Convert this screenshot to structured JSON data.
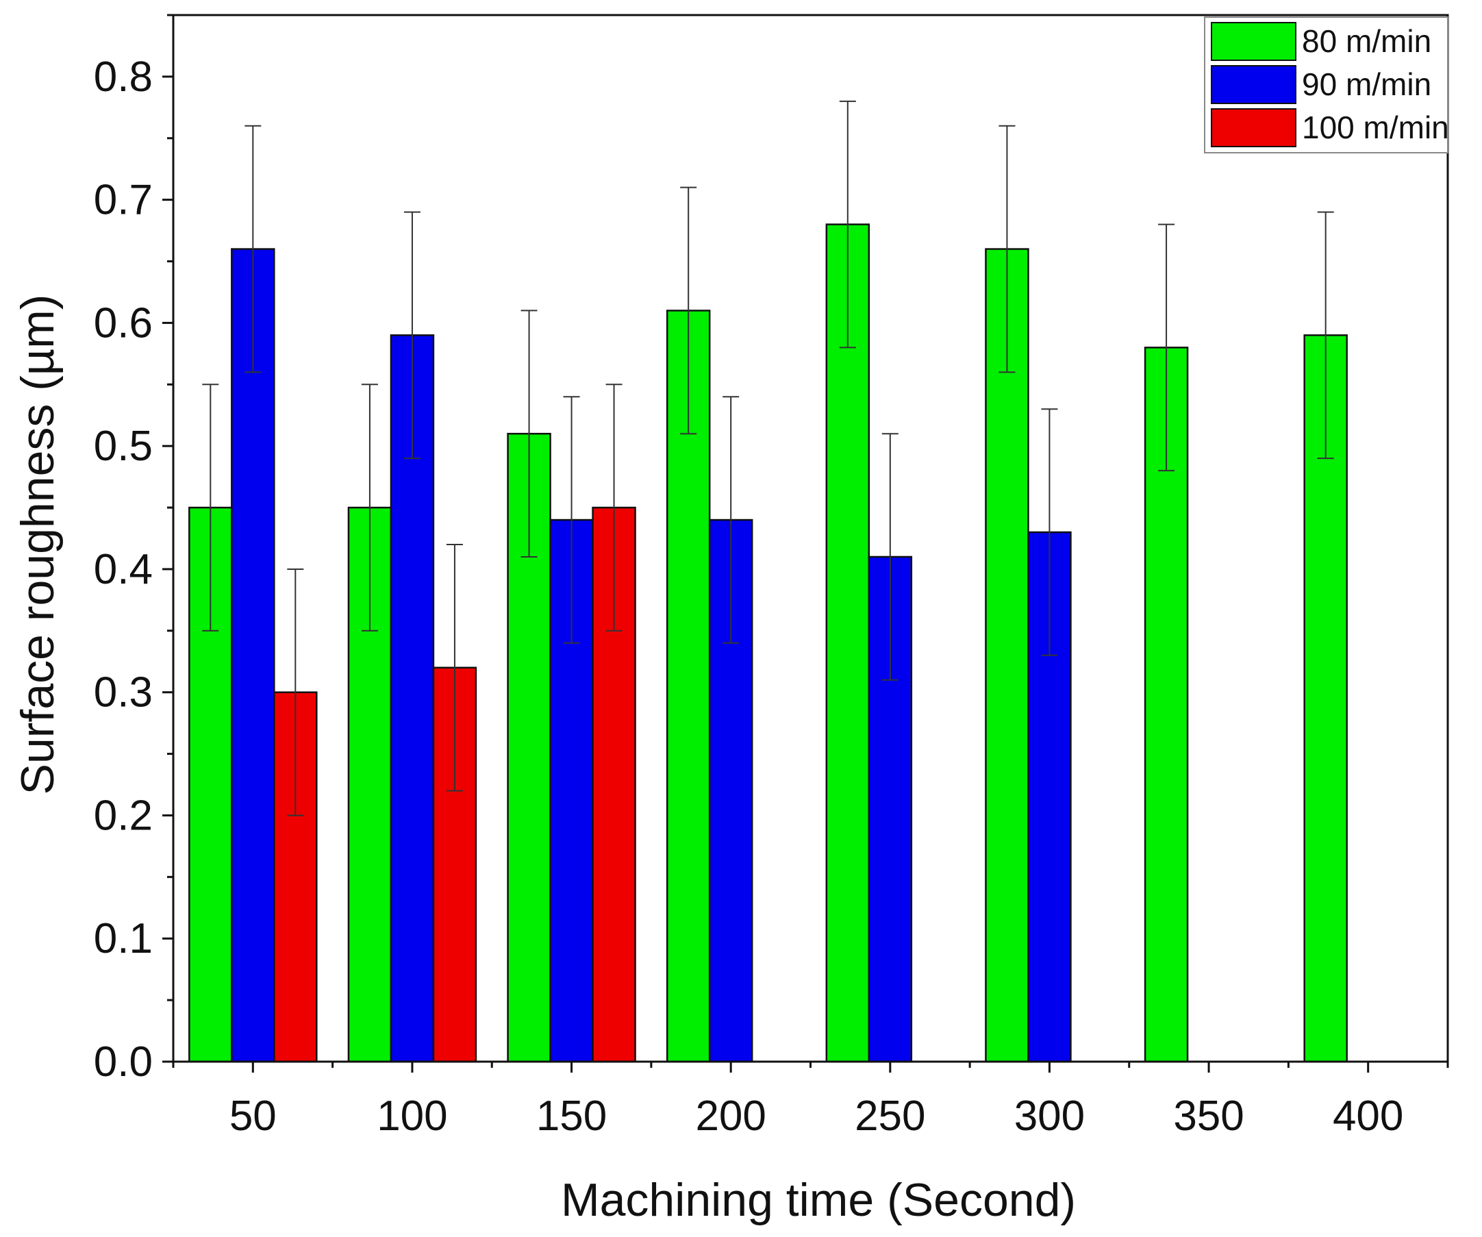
{
  "chart_data": {
    "type": "bar",
    "title": "",
    "xlabel": "Machining time (Second)",
    "ylabel": "Surface roughness (µm)",
    "categories": [
      "50",
      "100",
      "150",
      "200",
      "250",
      "300",
      "350",
      "400"
    ],
    "x": [
      50,
      100,
      150,
      200,
      250,
      300,
      350,
      400
    ],
    "xlim": [
      25,
      425
    ],
    "ylim": [
      0,
      0.85
    ],
    "yticks": [
      "0.0",
      "0.1",
      "0.2",
      "0.3",
      "0.4",
      "0.5",
      "0.6",
      "0.7",
      "0.8"
    ],
    "grid": false,
    "legend_position": "top-right",
    "series": [
      {
        "name": "80 m/min",
        "color": "#00ee00",
        "values": [
          0.45,
          0.45,
          0.51,
          0.61,
          0.68,
          0.66,
          0.58,
          0.59
        ],
        "errors": [
          0.1,
          0.1,
          0.1,
          0.1,
          0.1,
          0.1,
          0.1,
          0.1
        ]
      },
      {
        "name": "90 m/min",
        "color": "#0000ee",
        "values": [
          0.66,
          0.59,
          0.44,
          0.44,
          0.41,
          0.43,
          null,
          null
        ],
        "errors": [
          0.1,
          0.1,
          0.1,
          0.1,
          0.1,
          0.1,
          null,
          null
        ]
      },
      {
        "name": "100 m/min",
        "color": "#ee0000",
        "values": [
          0.3,
          0.32,
          0.45,
          null,
          null,
          null,
          null,
          null
        ],
        "errors": [
          0.1,
          0.1,
          0.1,
          null,
          null,
          null,
          null,
          null
        ]
      }
    ]
  }
}
